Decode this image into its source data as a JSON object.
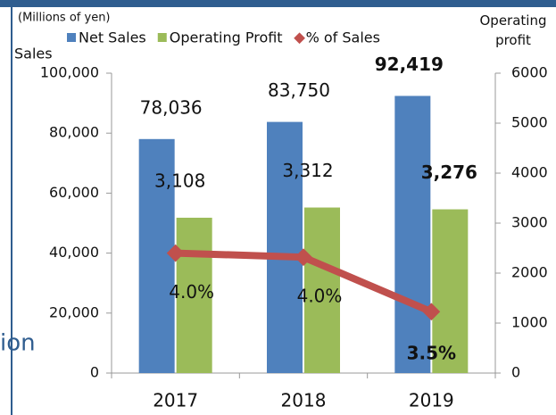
{
  "page": {
    "fragment": "ion"
  },
  "chart_data": {
    "type": "bar",
    "note": "(Millions of yen)",
    "ylabel": "Sales",
    "y2label": "Operating profit",
    "categories": [
      "2017",
      "2018",
      "2019"
    ],
    "series": [
      {
        "name": "Net Sales",
        "color": "#4f81bd",
        "values": [
          78036,
          83750,
          92419
        ],
        "value_labels": [
          "78,036",
          "83,750",
          "92,419"
        ]
      },
      {
        "name": "Operating Profit",
        "color": "#9bbb59",
        "axis": "y2",
        "values": [
          3108,
          3312,
          3276
        ],
        "value_labels": [
          "3,108",
          "3,312",
          "3,276"
        ]
      },
      {
        "name": "% of Sales",
        "type": "line",
        "color": "#c0504d",
        "axis": "y3",
        "values": [
          3.98,
          3.95,
          3.55
        ],
        "value_labels": [
          "4.0%",
          "4.0%",
          "3.5%"
        ]
      }
    ],
    "ylim": [
      0,
      100000
    ],
    "yticks": [
      0,
      {
        "value": 20000,
        "label": "20,000"
      },
      {
        "value": 40000,
        "label": "40,000"
      },
      {
        "value": 60000,
        "label": "60,000"
      },
      {
        "value": 80000,
        "label": "80,000"
      },
      {
        "value": 100000,
        "label": "100,000"
      }
    ],
    "y2lim": [
      0,
      6000
    ],
    "y2ticks": [
      0,
      1000,
      2000,
      3000,
      4000,
      5000,
      6000
    ],
    "y3lim": [
      3.1,
      5.3
    ],
    "legend": "top"
  }
}
